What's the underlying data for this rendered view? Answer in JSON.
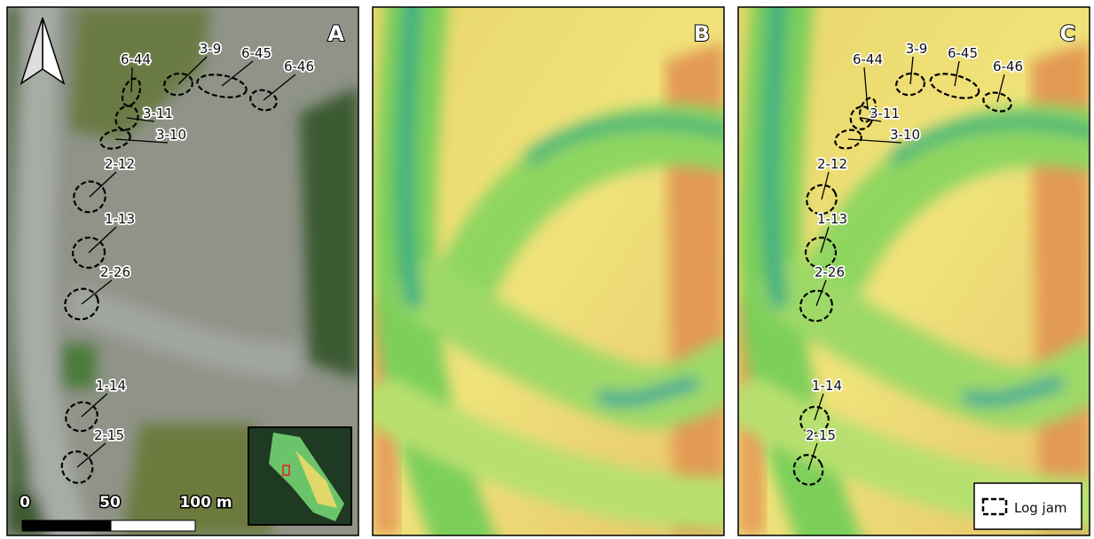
{
  "panels": [
    "A",
    "B",
    "C"
  ],
  "log_jams": [
    "6-44",
    "3-9",
    "6-45",
    "6-46",
    "3-11",
    "3-10",
    "2-12",
    "1-13",
    "2-26",
    "1-14",
    "2-15"
  ],
  "scale_bar": [
    "0",
    "50",
    "100 m"
  ],
  "legend": "Log jam"
}
